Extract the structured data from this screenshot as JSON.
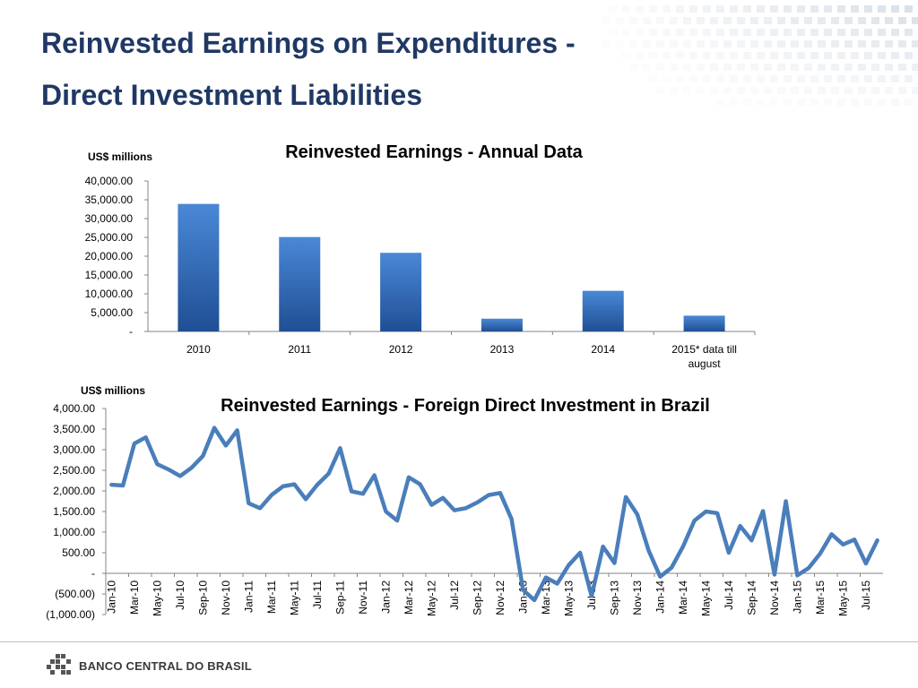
{
  "slide": {
    "title_line1": "Reinvested Earnings on Expenditures -",
    "title_line2": "Direct Investment Liabilities",
    "footer_logo": "BANCO CENTRAL DO BRASIL"
  },
  "colors": {
    "title": "#1F3864",
    "bar_top": "#4a88d6",
    "bar_bottom": "#1f4f94",
    "line": "#4a7ebb"
  },
  "chart_data": [
    {
      "type": "bar",
      "title": "Reinvested Earnings - Annual Data",
      "ylabel": "US$ millions",
      "categories": [
        "2010",
        "2011",
        "2012",
        "2013",
        "2014",
        "2015* data till august"
      ],
      "category_lines": [
        [
          "2010"
        ],
        [
          "2011"
        ],
        [
          "2012"
        ],
        [
          "2013"
        ],
        [
          "2014"
        ],
        [
          "2015* data till",
          "august"
        ]
      ],
      "values": [
        33900,
        25100,
        20900,
        3400,
        10800,
        4200
      ],
      "ylim": [
        0,
        40000
      ],
      "yticks": [
        0,
        5000,
        10000,
        15000,
        20000,
        25000,
        30000,
        35000,
        40000
      ],
      "ytick_labels": [
        "-",
        "5,000.00",
        "10,000.00",
        "15,000.00",
        "20,000.00",
        "25,000.00",
        "30,000.00",
        "35,000.00",
        "40,000.00"
      ],
      "grid": false,
      "legend": "none"
    },
    {
      "type": "line",
      "title": "Reinvested Earnings - Foreign Direct Investment in Brazil",
      "ylabel": "US$ millions",
      "x": [
        "Jan-10",
        "Feb-10",
        "Mar-10",
        "Apr-10",
        "May-10",
        "Jun-10",
        "Jul-10",
        "Aug-10",
        "Sep-10",
        "Oct-10",
        "Nov-10",
        "Dec-10",
        "Jan-11",
        "Feb-11",
        "Mar-11",
        "Apr-11",
        "May-11",
        "Jun-11",
        "Jul-11",
        "Aug-11",
        "Sep-11",
        "Oct-11",
        "Nov-11",
        "Dec-11",
        "Jan-12",
        "Feb-12",
        "Mar-12",
        "Apr-12",
        "May-12",
        "Jun-12",
        "Jul-12",
        "Aug-12",
        "Sep-12",
        "Oct-12",
        "Nov-12",
        "Dec-12",
        "Jan-13",
        "Feb-13",
        "Mar-13",
        "Apr-13",
        "May-13",
        "Jun-13",
        "Jul-13",
        "Aug-13",
        "Sep-13",
        "Oct-13",
        "Nov-13",
        "Dec-13",
        "Jan-14",
        "Feb-14",
        "Mar-14",
        "Apr-14",
        "May-14",
        "Jun-14",
        "Jul-14",
        "Aug-14",
        "Sep-14",
        "Oct-14",
        "Nov-14",
        "Dec-14",
        "Jan-15",
        "Feb-15",
        "Mar-15",
        "Apr-15",
        "May-15",
        "Jun-15",
        "Jul-15",
        "Aug-15"
      ],
      "xtick_labels": [
        "Jan-10",
        "Mar-10",
        "May-10",
        "Jul-10",
        "Sep-10",
        "Nov-10",
        "Jan-11",
        "Mar-11",
        "May-11",
        "Jul-11",
        "Sep-11",
        "Nov-11",
        "Jan-12",
        "Mar-12",
        "May-12",
        "Jul-12",
        "Sep-12",
        "Nov-12",
        "Jan-13",
        "Mar-13",
        "May-13",
        "Jul-13",
        "Sep-13",
        "Nov-13",
        "Jan-14",
        "Mar-14",
        "May-14",
        "Jul-14",
        "Sep-14",
        "Nov-14",
        "Jan-15",
        "Mar-15",
        "May-15",
        "Jul-15"
      ],
      "series": [
        {
          "values": [
            2150,
            2130,
            3150,
            3300,
            2650,
            2520,
            2360,
            2560,
            2850,
            3530,
            3100,
            3470,
            1700,
            1580,
            1900,
            2110,
            2160,
            1800,
            2150,
            2420,
            3040,
            1990,
            1930,
            2380,
            1500,
            1280,
            2330,
            2160,
            1660,
            1830,
            1530,
            1580,
            1720,
            1900,
            1950,
            1320,
            -400,
            -650,
            -100,
            -250,
            200,
            500,
            -550,
            650,
            250,
            1850,
            1430,
            550,
            -80,
            140,
            650,
            1280,
            1500,
            1460,
            500,
            1150,
            800,
            1510,
            -30,
            1750,
            -50,
            130,
            480,
            950,
            700,
            820,
            240,
            800
          ]
        }
      ],
      "ylim": [
        -1000,
        4000
      ],
      "yticks": [
        -1000,
        -500,
        0,
        500,
        1000,
        1500,
        2000,
        2500,
        3000,
        3500,
        4000
      ],
      "ytick_labels": [
        "(1,000.00)",
        "(500.00)",
        "-",
        "500.00",
        "1,000.00",
        "1,500.00",
        "2,000.00",
        "2,500.00",
        "3,000.00",
        "3,500.00",
        "4,000.00"
      ],
      "grid": false,
      "legend": "none"
    }
  ]
}
